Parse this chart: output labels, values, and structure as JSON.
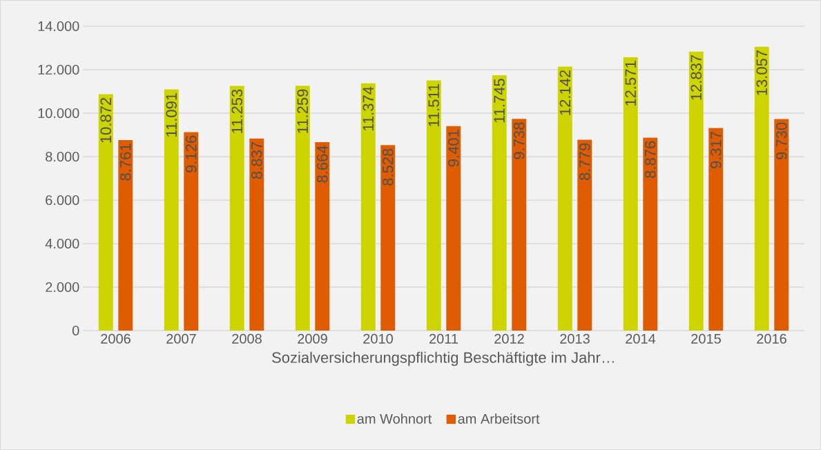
{
  "chart_data": {
    "type": "bar",
    "xlabel": "Sozialversicherungspflichtig Beschäftigte im Jahr…",
    "categories": [
      "2006",
      "2007",
      "2008",
      "2009",
      "2010",
      "2011",
      "2012",
      "2013",
      "2014",
      "2015",
      "2016"
    ],
    "series": [
      {
        "name": "am Wohnort",
        "color": "#cdd400",
        "values": [
          10872,
          11091,
          11253,
          11259,
          11374,
          11511,
          11745,
          12142,
          12571,
          12837,
          13057
        ],
        "value_labels": [
          "10.872",
          "11.091",
          "11.253",
          "11.259",
          "11.374",
          "11.511",
          "11.745",
          "12.142",
          "12.571",
          "12.837",
          "13.057"
        ]
      },
      {
        "name": "am Arbeitsort",
        "color": "#e05c00",
        "values": [
          8761,
          9126,
          8837,
          8664,
          8528,
          9401,
          9738,
          8779,
          8876,
          9317,
          9730
        ],
        "value_labels": [
          "8.761",
          "9.126",
          "8.837",
          "8.664",
          "8.528",
          "9.401",
          "9.738",
          "8.779",
          "8.876",
          "9.317",
          "9.730"
        ]
      }
    ],
    "ylim": [
      0,
      14000
    ],
    "yticks": [
      0,
      {
        "value": 2000,
        "label": "2.000"
      },
      {
        "value": 4000,
        "label": "4.000"
      },
      {
        "value": 6000,
        "label": "6.000"
      },
      {
        "value": 8000,
        "label": "8.000"
      },
      {
        "value": 10000,
        "label": "10.000"
      },
      {
        "value": 12000,
        "label": "12.000"
      },
      {
        "value": 14000,
        "label": "14.000"
      }
    ],
    "grid": "y",
    "legend": "bottom"
  }
}
